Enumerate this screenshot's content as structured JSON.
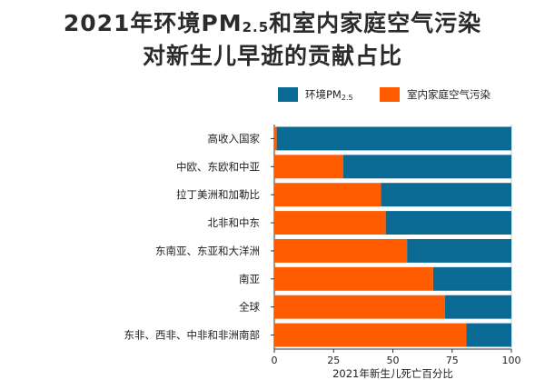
{
  "title": {
    "line1_prefix": "2021年环境PM",
    "line1_sub": "2.5",
    "line1_suffix": "和室内家庭空气污染",
    "line2": "对新生儿早逝的贡献占比"
  },
  "chart_data": {
    "type": "bar",
    "orientation": "horizontal",
    "stacked": true,
    "categories": [
      "高收入国家",
      "中欧、东欧和中亚",
      "拉丁美洲和加勒比",
      "北非和中东",
      "东南亚、东亚和大洋洲",
      "南亚",
      "全球",
      "东非、西非、中非和非洲南部"
    ],
    "series": [
      {
        "name": "室内家庭空气污染",
        "color": "#ff5c00",
        "values": [
          1,
          29,
          45,
          47,
          56,
          67,
          72,
          81
        ]
      },
      {
        "name": "环境PM2.5",
        "color": "#0b6a94",
        "values": [
          99,
          71,
          55,
          53,
          44,
          33,
          28,
          19
        ]
      }
    ],
    "legend": {
      "position": "top",
      "entries": [
        {
          "prefix": "环境PM",
          "sub": "2.5",
          "color": "#0b6a94"
        },
        {
          "prefix": "室内家庭空气污染",
          "sub": "",
          "color": "#ff5c00"
        }
      ]
    },
    "xlabel": "2021年新生儿死亡百分比",
    "xlim": [
      0,
      100
    ],
    "xticks": [
      0,
      25,
      50,
      75,
      100
    ],
    "grid": false
  }
}
